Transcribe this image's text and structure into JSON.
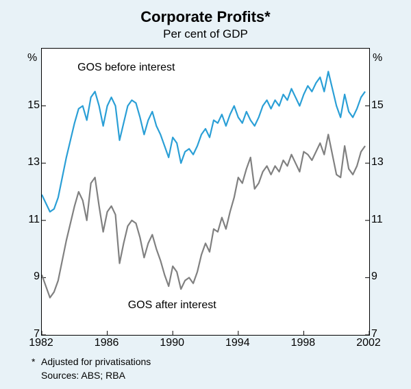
{
  "figure": {
    "type": "line",
    "background": "#e8f2f7",
    "plot_background": "#ffffff",
    "border_color": "#000000",
    "title": "Corporate Profits*",
    "title_fontsize": 22,
    "title_weight": "bold",
    "subtitle": "Per cent of GDP",
    "subtitle_fontsize": 17,
    "y_unit": "%",
    "axis_fontsize": 16,
    "xlim": [
      1982,
      2002
    ],
    "ylim": [
      7,
      17
    ],
    "xticks": [
      1982,
      1986,
      1990,
      1994,
      1998,
      2002
    ],
    "yticks": [
      7,
      9,
      11,
      13,
      15
    ],
    "tick_color": "#000000",
    "footnote_marker": "*",
    "footnote": "Adjusted for privatisations",
    "sources": "Sources:  ABS; RBA",
    "footnote_fontsize": 14,
    "series": [
      {
        "name": "GOS before interest",
        "label": "GOS before interest",
        "label_pos": {
          "x": 1987.2,
          "y": 16.3
        },
        "color": "#2a9fd6",
        "line_width": 2.2,
        "x": [
          1982.0,
          1982.25,
          1982.5,
          1982.75,
          1983.0,
          1983.25,
          1983.5,
          1983.75,
          1984.0,
          1984.25,
          1984.5,
          1984.75,
          1985.0,
          1985.25,
          1985.5,
          1985.75,
          1986.0,
          1986.25,
          1986.5,
          1986.75,
          1987.0,
          1987.25,
          1987.5,
          1987.75,
          1988.0,
          1988.25,
          1988.5,
          1988.75,
          1989.0,
          1989.25,
          1989.5,
          1989.75,
          1990.0,
          1990.25,
          1990.5,
          1990.75,
          1991.0,
          1991.25,
          1991.5,
          1991.75,
          1992.0,
          1992.25,
          1992.5,
          1992.75,
          1993.0,
          1993.25,
          1993.5,
          1993.75,
          1994.0,
          1994.25,
          1994.5,
          1994.75,
          1995.0,
          1995.25,
          1995.5,
          1995.75,
          1996.0,
          1996.25,
          1996.5,
          1996.75,
          1997.0,
          1997.25,
          1997.5,
          1997.75,
          1998.0,
          1998.25,
          1998.5,
          1998.75,
          1999.0,
          1999.25,
          1999.5,
          1999.75,
          2000.0,
          2000.25,
          2000.5,
          2000.75,
          2001.0,
          2001.25,
          2001.5,
          2001.75
        ],
        "y": [
          11.9,
          11.6,
          11.3,
          11.4,
          11.8,
          12.5,
          13.2,
          13.8,
          14.4,
          14.9,
          15.0,
          14.5,
          15.3,
          15.5,
          15.0,
          14.3,
          15.0,
          15.3,
          15.0,
          13.8,
          14.4,
          15.0,
          15.2,
          15.1,
          14.6,
          14.0,
          14.5,
          14.8,
          14.3,
          14.0,
          13.6,
          13.2,
          13.9,
          13.7,
          13.0,
          13.4,
          13.5,
          13.3,
          13.6,
          14.0,
          14.2,
          13.9,
          14.5,
          14.4,
          14.7,
          14.3,
          14.7,
          15.0,
          14.6,
          14.4,
          14.8,
          14.5,
          14.3,
          14.6,
          15.0,
          15.2,
          14.9,
          15.2,
          15.0,
          15.4,
          15.2,
          15.6,
          15.3,
          15.0,
          15.4,
          15.7,
          15.5,
          15.8,
          16.0,
          15.5,
          16.2,
          15.6,
          15.0,
          14.6,
          15.4,
          14.8,
          14.6,
          14.9,
          15.3,
          15.5
        ]
      },
      {
        "name": "GOS after interest",
        "label": "GOS after interest",
        "label_pos": {
          "x": 1990.0,
          "y": 8.0
        },
        "color": "#808080",
        "line_width": 2.2,
        "x": [
          1982.0,
          1982.25,
          1982.5,
          1982.75,
          1983.0,
          1983.25,
          1983.5,
          1983.75,
          1984.0,
          1984.25,
          1984.5,
          1984.75,
          1985.0,
          1985.25,
          1985.5,
          1985.75,
          1986.0,
          1986.25,
          1986.5,
          1986.75,
          1987.0,
          1987.25,
          1987.5,
          1987.75,
          1988.0,
          1988.25,
          1988.5,
          1988.75,
          1989.0,
          1989.25,
          1989.5,
          1989.75,
          1990.0,
          1990.25,
          1990.5,
          1990.75,
          1991.0,
          1991.25,
          1991.5,
          1991.75,
          1992.0,
          1992.25,
          1992.5,
          1992.75,
          1993.0,
          1993.25,
          1993.5,
          1993.75,
          1994.0,
          1994.25,
          1994.5,
          1994.75,
          1995.0,
          1995.25,
          1995.5,
          1995.75,
          1996.0,
          1996.25,
          1996.5,
          1996.75,
          1997.0,
          1997.25,
          1997.5,
          1997.75,
          1998.0,
          1998.25,
          1998.5,
          1998.75,
          1999.0,
          1999.25,
          1999.5,
          1999.75,
          2000.0,
          2000.25,
          2000.5,
          2000.75,
          2001.0,
          2001.25,
          2001.5,
          2001.75
        ],
        "y": [
          9.1,
          8.7,
          8.3,
          8.5,
          8.9,
          9.6,
          10.3,
          10.9,
          11.5,
          12.0,
          11.7,
          11.0,
          12.3,
          12.5,
          11.5,
          10.6,
          11.3,
          11.5,
          11.2,
          9.5,
          10.2,
          10.8,
          11.0,
          10.9,
          10.4,
          9.7,
          10.2,
          10.5,
          10.0,
          9.6,
          9.1,
          8.7,
          9.4,
          9.2,
          8.6,
          8.9,
          9.0,
          8.8,
          9.2,
          9.8,
          10.2,
          9.9,
          10.7,
          10.6,
          11.1,
          10.7,
          11.3,
          11.8,
          12.5,
          12.3,
          12.8,
          13.2,
          12.1,
          12.3,
          12.7,
          12.9,
          12.6,
          12.9,
          12.7,
          13.1,
          12.9,
          13.3,
          13.0,
          12.7,
          13.4,
          13.3,
          13.1,
          13.4,
          13.7,
          13.3,
          14.0,
          13.3,
          12.6,
          12.5,
          13.6,
          12.8,
          12.6,
          12.9,
          13.4,
          13.6
        ]
      }
    ]
  }
}
